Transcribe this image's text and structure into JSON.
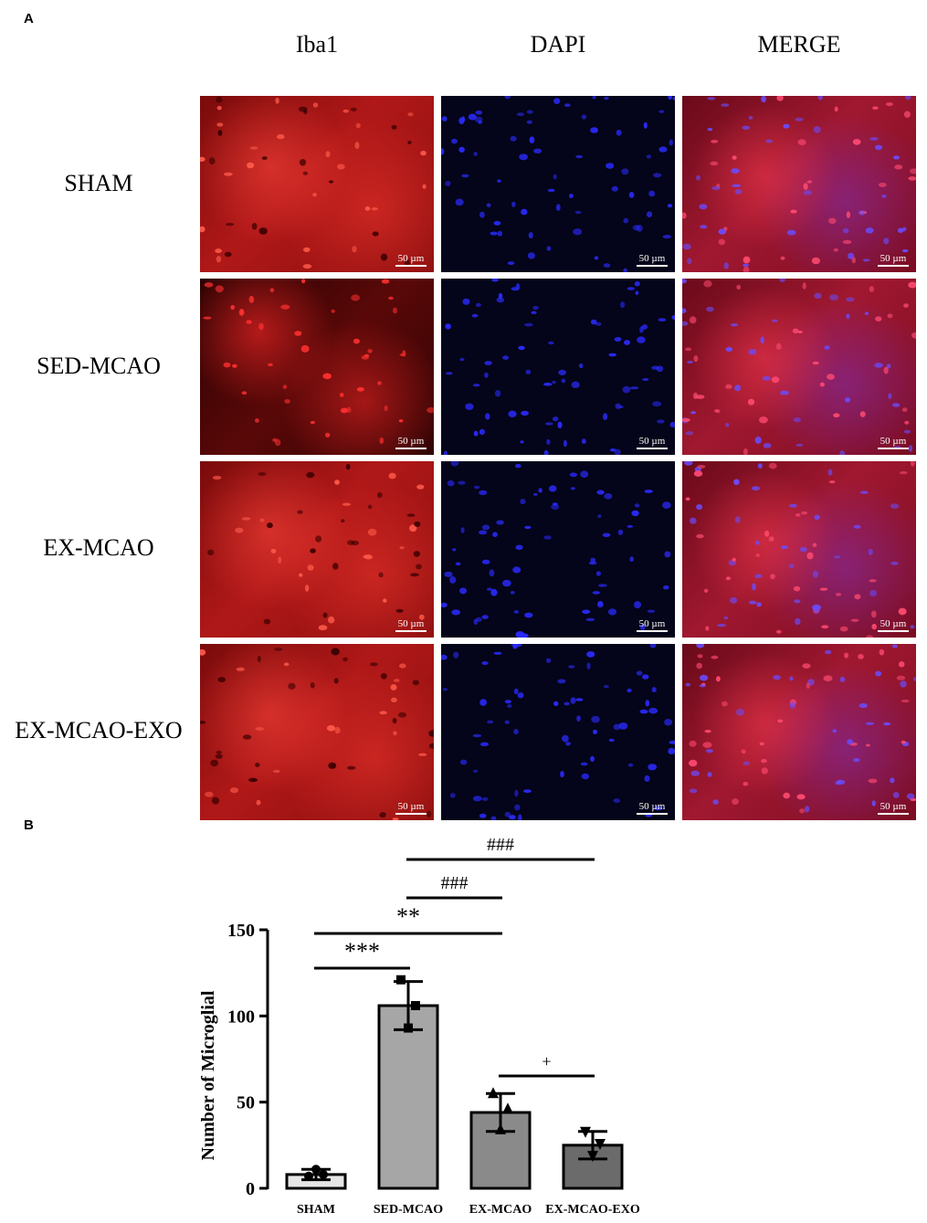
{
  "panel_a": {
    "letter": "A",
    "columns": [
      "Iba1",
      "DAPI",
      "MERGE"
    ],
    "rows": [
      "SHAM",
      "SED-MCAO",
      "EX-MCAO",
      "EX-MCAO-EXO"
    ],
    "scale_bar": "50 µm"
  },
  "panel_b": {
    "letter": "B"
  },
  "chart_data": {
    "type": "bar",
    "categories": [
      "SHAM",
      "SED-MCAO",
      "EX-MCAO",
      "EX-MCAO-EXO"
    ],
    "values": [
      8,
      106,
      44,
      25
    ],
    "errors": [
      3,
      14,
      11,
      8
    ],
    "points": [
      [
        7,
        11,
        8
      ],
      [
        121,
        93,
        106
      ],
      [
        55,
        34,
        46
      ],
      [
        33,
        19,
        26
      ]
    ],
    "bar_colors": [
      "#e6e6e6",
      "#a6a6a6",
      "#8a8a8a",
      "#6b6b6b"
    ],
    "ylabel": "Number of Microglial",
    "xlabel": "",
    "ylim": [
      0,
      150
    ],
    "yticks": [
      0,
      50,
      100,
      150
    ],
    "significance": [
      {
        "from": 0,
        "to": 1,
        "label": "***"
      },
      {
        "from": 0,
        "to": 2,
        "label": "**"
      },
      {
        "from": 1,
        "to": 2,
        "label": "###"
      },
      {
        "from": 1,
        "to": 3,
        "label": "###"
      },
      {
        "from": 2,
        "to": 3,
        "label": "+"
      }
    ],
    "grid": false
  }
}
